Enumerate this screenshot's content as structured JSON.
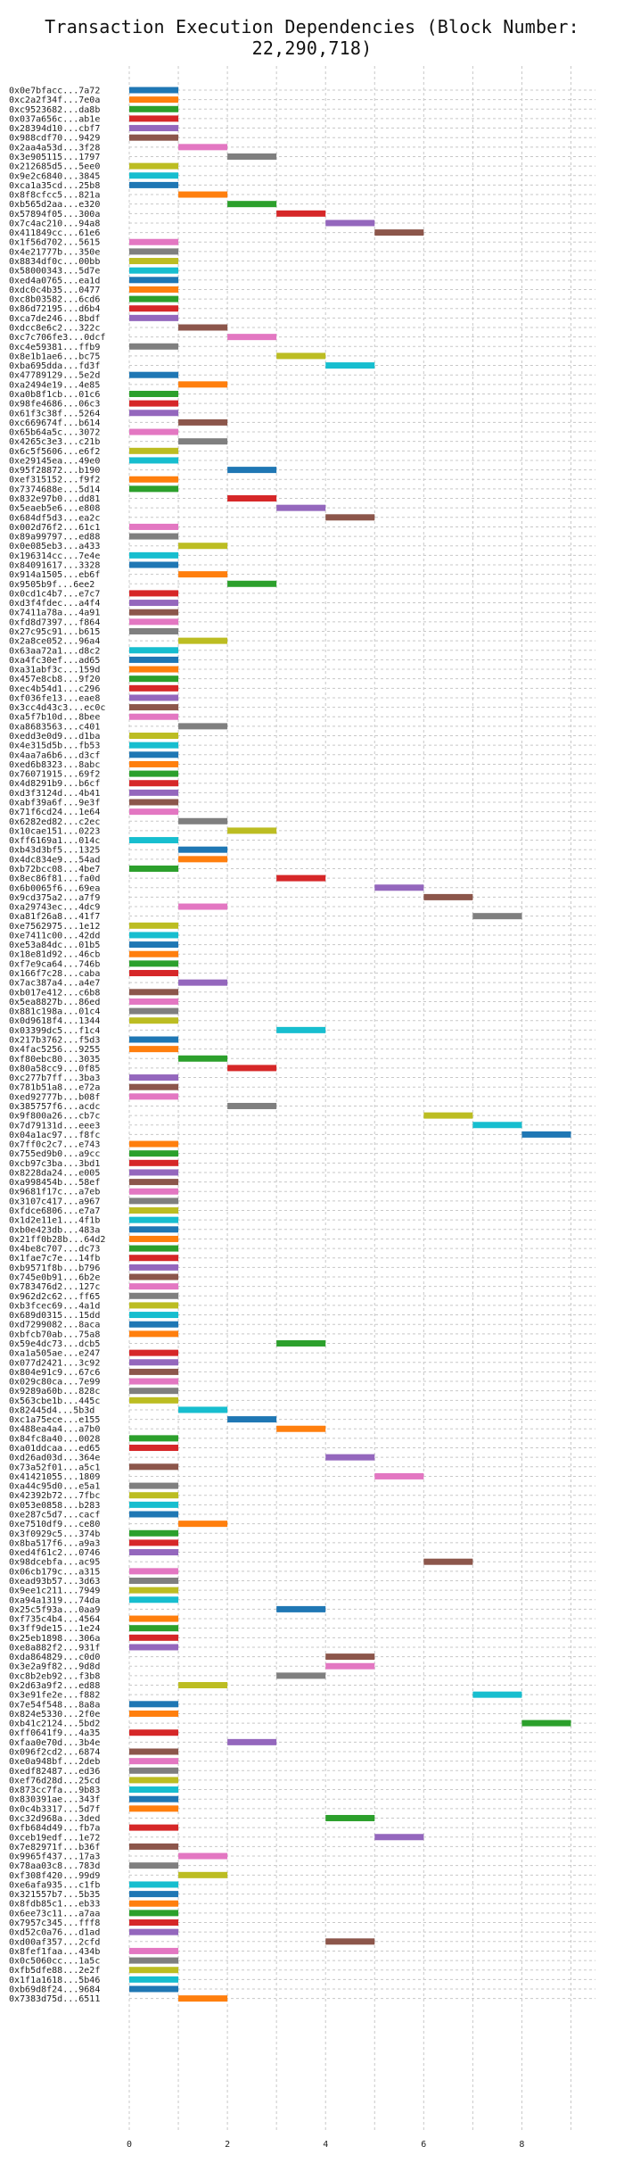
{
  "chart_data": {
    "type": "bar",
    "title": "Transaction Execution Dependencies (Block Number: 22,290,718)",
    "xlabel": "",
    "ylabel": "",
    "xlim": [
      0,
      9.5
    ],
    "x_ticks": [
      0,
      2,
      4,
      6,
      8
    ],
    "grid": true,
    "legend": "none",
    "palette": [
      "#1f77b4",
      "#ff7f0e",
      "#2ca02c",
      "#d62728",
      "#9467bd",
      "#8c564b",
      "#e377c2",
      "#7f7f7f",
      "#bcbd22",
      "#17becf"
    ],
    "bars": [
      {
        "label": "0x0e7bfacc...7a72",
        "start": 0
      },
      {
        "label": "0xc2a2f34f...7e0a",
        "start": 0
      },
      {
        "label": "0xc9523682...da8b",
        "start": 0
      },
      {
        "label": "0x037a656c...ab1e",
        "start": 0
      },
      {
        "label": "0x28394d10...cbf7",
        "start": 0
      },
      {
        "label": "0x988cdf70...9429",
        "start": 0
      },
      {
        "label": "0x2aa4a53d...3f28",
        "start": 1
      },
      {
        "label": "0x3e905115...1797",
        "start": 2
      },
      {
        "label": "0x212685d5...5ee0",
        "start": 0
      },
      {
        "label": "0x9e2c6840...3845",
        "start": 0
      },
      {
        "label": "0xca1a35cd...25b8",
        "start": 0
      },
      {
        "label": "0x8f8cfcc5...821a",
        "start": 1
      },
      {
        "label": "0xb565d2aa...e320",
        "start": 2
      },
      {
        "label": "0x57894f05...300a",
        "start": 3
      },
      {
        "label": "0x7c4ac210...94a8",
        "start": 4
      },
      {
        "label": "0x411849cc...61e6",
        "start": 5
      },
      {
        "label": "0x1f56d702...5615",
        "start": 0
      },
      {
        "label": "0x4e21777b...350e",
        "start": 0
      },
      {
        "label": "0x8834df0c...00bb",
        "start": 0
      },
      {
        "label": "0x58000343...5d7e",
        "start": 0
      },
      {
        "label": "0xed4a0765...ea1d",
        "start": 0
      },
      {
        "label": "0xdc0c4b35...0477",
        "start": 0
      },
      {
        "label": "0xc8b03582...6cd6",
        "start": 0
      },
      {
        "label": "0x86d72195...d6b4",
        "start": 0
      },
      {
        "label": "0xca7de246...8bdf",
        "start": 0
      },
      {
        "label": "0xdcc8e6c2...322c",
        "start": 1
      },
      {
        "label": "0xc7c706fe3...0dcf",
        "start": 2
      },
      {
        "label": "0xc4e59381...ffb9",
        "start": 0
      },
      {
        "label": "0x8e1b1ae6...bc75",
        "start": 3
      },
      {
        "label": "0xba695dda...fd3f",
        "start": 4
      },
      {
        "label": "0x47789129...5e2d",
        "start": 0
      },
      {
        "label": "0xa2494e19...4e85",
        "start": 1
      },
      {
        "label": "0xa0b8f1cb...01c6",
        "start": 0
      },
      {
        "label": "0x98fe4686...06c3",
        "start": 0
      },
      {
        "label": "0x61f3c38f...5264",
        "start": 0
      },
      {
        "label": "0xc669674f...b614",
        "start": 1
      },
      {
        "label": "0x65b64a5c...3072",
        "start": 0
      },
      {
        "label": "0x4265c3e3...c21b",
        "start": 1
      },
      {
        "label": "0x6c5f5606...e6f2",
        "start": 0
      },
      {
        "label": "0xe29145ea...49e0",
        "start": 0
      },
      {
        "label": "0x95f28872...b190",
        "start": 2
      },
      {
        "label": "0xef315152...f9f2",
        "start": 0
      },
      {
        "label": "0x7374688e...5d14",
        "start": 0
      },
      {
        "label": "0x832e97b0...dd81",
        "start": 2
      },
      {
        "label": "0x5eaeb5e6...e808",
        "start": 3
      },
      {
        "label": "0x684df5d3...ea2c",
        "start": 4
      },
      {
        "label": "0x002d76f2...61c1",
        "start": 0
      },
      {
        "label": "0x89a99797...ed88",
        "start": 0
      },
      {
        "label": "0x0e085eb3...a433",
        "start": 1
      },
      {
        "label": "0x196314cc...7e4e",
        "start": 0
      },
      {
        "label": "0x84091617...3328",
        "start": 0
      },
      {
        "label": "0x914a1505...eb6f",
        "start": 1
      },
      {
        "label": "0x9505b9f...6ee2",
        "start": 2
      },
      {
        "label": "0x0cd1c4b7...e7c7",
        "start": 0
      },
      {
        "label": "0xd3f4fdec...a4f4",
        "start": 0
      },
      {
        "label": "0x7411a78a...4a91",
        "start": 0
      },
      {
        "label": "0xfd8d7397...f864",
        "start": 0
      },
      {
        "label": "0x27c95c91...b615",
        "start": 0
      },
      {
        "label": "0x2a8ce052...96a4",
        "start": 1
      },
      {
        "label": "0x63aa72a1...d8c2",
        "start": 0
      },
      {
        "label": "0xa4fc30ef...ad65",
        "start": 0
      },
      {
        "label": "0xa31abf3c...159d",
        "start": 0
      },
      {
        "label": "0x457e8cb8...9f20",
        "start": 0
      },
      {
        "label": "0xec4b54d1...c296",
        "start": 0
      },
      {
        "label": "0xf036fe13...eae8",
        "start": 0
      },
      {
        "label": "0x3cc4d43c3...ec0c",
        "start": 0
      },
      {
        "label": "0xa5f7b10d...8bee",
        "start": 0
      },
      {
        "label": "0xa8683563...c401",
        "start": 1
      },
      {
        "label": "0xedd3e0d9...d1ba",
        "start": 0
      },
      {
        "label": "0x4e315d5b...fb53",
        "start": 0
      },
      {
        "label": "0x4aa7a6b6...d3cf",
        "start": 0
      },
      {
        "label": "0xed6b8323...8abc",
        "start": 0
      },
      {
        "label": "0x76071915...69f2",
        "start": 0
      },
      {
        "label": "0x4d8291b9...b6cf",
        "start": 0
      },
      {
        "label": "0xd3f3124d...4b41",
        "start": 0
      },
      {
        "label": "0xabf39a6f...9e3f",
        "start": 0
      },
      {
        "label": "0x71f6cd24...1e64",
        "start": 0
      },
      {
        "label": "0x6282ed82...c2ec",
        "start": 1
      },
      {
        "label": "0x10cae151...0223",
        "start": 2
      },
      {
        "label": "0xff6169a1...014c",
        "start": 0
      },
      {
        "label": "0xb43d3bf5...1325",
        "start": 1
      },
      {
        "label": "0x4dc834e9...54ad",
        "start": 1
      },
      {
        "label": "0xb72bcc08...4be7",
        "start": 0
      },
      {
        "label": "0x8ec86f81...fa0d",
        "start": 3
      },
      {
        "label": "0x6b0065f6...69ea",
        "start": 5
      },
      {
        "label": "0x9cd375a2...a7f9",
        "start": 6
      },
      {
        "label": "0xa29743ec...4dc9",
        "start": 1
      },
      {
        "label": "0xa81f26a8...41f7",
        "start": 7
      },
      {
        "label": "0xe7562975...1e12",
        "start": 0
      },
      {
        "label": "0xe7411c00...42dd",
        "start": 0
      },
      {
        "label": "0xe53a84dc...01b5",
        "start": 0
      },
      {
        "label": "0x18e81d92...46cb",
        "start": 0
      },
      {
        "label": "0xf7e9ca64...746b",
        "start": 0
      },
      {
        "label": "0x166f7c28...caba",
        "start": 0
      },
      {
        "label": "0x7ac387a4...a4e7",
        "start": 1
      },
      {
        "label": "0xb017e412...c6b8",
        "start": 0
      },
      {
        "label": "0x5ea8827b...86ed",
        "start": 0
      },
      {
        "label": "0x881c198a...01c4",
        "start": 0
      },
      {
        "label": "0x0d9618f4...1344",
        "start": 0
      },
      {
        "label": "0x03399dc5...f1c4",
        "start": 3
      },
      {
        "label": "0x217b3762...f5d3",
        "start": 0
      },
      {
        "label": "0x4fac5256...9255",
        "start": 0
      },
      {
        "label": "0xf80ebc80...3035",
        "start": 1
      },
      {
        "label": "0x80a58cc9...0f85",
        "start": 2
      },
      {
        "label": "0xc277b7ff...3ba3",
        "start": 0
      },
      {
        "label": "0x781b51a8...e72a",
        "start": 0
      },
      {
        "label": "0xed92777b...b08f",
        "start": 0
      },
      {
        "label": "0x385757f6...acdc",
        "start": 2
      },
      {
        "label": "0x9f800a26...cb7c",
        "start": 6
      },
      {
        "label": "0x7d79131d...eee3",
        "start": 7
      },
      {
        "label": "0x04a1ac97...f8fc",
        "start": 8
      },
      {
        "label": "0x7ff0c2c7...e743",
        "start": 0
      },
      {
        "label": "0x755ed9b0...a9cc",
        "start": 0
      },
      {
        "label": "0xcb97c3ba...3bd1",
        "start": 0
      },
      {
        "label": "0x8228da24...e005",
        "start": 0
      },
      {
        "label": "0xa998454b...58ef",
        "start": 0
      },
      {
        "label": "0x9681f17c...a7eb",
        "start": 0
      },
      {
        "label": "0x3107c417...a967",
        "start": 0
      },
      {
        "label": "0xfdce6806...e7a7",
        "start": 0
      },
      {
        "label": "0x1d2e11e1...4f1b",
        "start": 0
      },
      {
        "label": "0xb0e423db...483a",
        "start": 0
      },
      {
        "label": "0x21ff0b28b...64d2",
        "start": 0
      },
      {
        "label": "0x4be8c707...dc73",
        "start": 0
      },
      {
        "label": "0x1fae7c7e...14fb",
        "start": 0
      },
      {
        "label": "0xb9571f8b...b796",
        "start": 0
      },
      {
        "label": "0x745e0b91...6b2e",
        "start": 0
      },
      {
        "label": "0x783476d2...127c",
        "start": 0
      },
      {
        "label": "0x962d2c62...ff65",
        "start": 0
      },
      {
        "label": "0xb3fcec69...4a1d",
        "start": 0
      },
      {
        "label": "0x689d0315...15dd",
        "start": 0
      },
      {
        "label": "0xd7299082...8aca",
        "start": 0
      },
      {
        "label": "0xbfcb70ab...75a8",
        "start": 0
      },
      {
        "label": "0x59e4dc73...dcb5",
        "start": 3
      },
      {
        "label": "0xa1a505ae...e247",
        "start": 0
      },
      {
        "label": "0x077d2421...3c92",
        "start": 0
      },
      {
        "label": "0x804e91c9...67c6",
        "start": 0
      },
      {
        "label": "0x029c80ca...7e99",
        "start": 0
      },
      {
        "label": "0x9289a60b...828c",
        "start": 0
      },
      {
        "label": "0x563cbe1b...445c",
        "start": 0
      },
      {
        "label": "0x82445d4...5b3d",
        "start": 1
      },
      {
        "label": "0xc1a75ece...e155",
        "start": 2
      },
      {
        "label": "0x488ea4a4...a7b0",
        "start": 3
      },
      {
        "label": "0x84fc8a40...0028",
        "start": 0
      },
      {
        "label": "0xa01ddcaa...ed65",
        "start": 0
      },
      {
        "label": "0xd26ad03d...364e",
        "start": 4
      },
      {
        "label": "0x73a52f01...a5c1",
        "start": 0
      },
      {
        "label": "0x41421055...1809",
        "start": 5
      },
      {
        "label": "0xa44c95d0...e5a1",
        "start": 0
      },
      {
        "label": "0x42392b72...7fbc",
        "start": 0
      },
      {
        "label": "0x053e0858...b283",
        "start": 0
      },
      {
        "label": "0xe287c5d7...cacf",
        "start": 0
      },
      {
        "label": "0xe7510df9...ce80",
        "start": 1
      },
      {
        "label": "0x3f0929c5...374b",
        "start": 0
      },
      {
        "label": "0x8ba517f6...a9a3",
        "start": 0
      },
      {
        "label": "0xed4f61c2...0746",
        "start": 0
      },
      {
        "label": "0x98dcebfa...ac95",
        "start": 6
      },
      {
        "label": "0x06cb179c...a315",
        "start": 0
      },
      {
        "label": "0xead93b57...3d63",
        "start": 0
      },
      {
        "label": "0x9ee1c211...7949",
        "start": 0
      },
      {
        "label": "0xa94a1319...74da",
        "start": 0
      },
      {
        "label": "0x25c5f93a...0aa9",
        "start": 3
      },
      {
        "label": "0xf735c4b4...4564",
        "start": 0
      },
      {
        "label": "0x3ff9de15...1e24",
        "start": 0
      },
      {
        "label": "0x25eb1898...306a",
        "start": 0
      },
      {
        "label": "0xe8a882f2...931f",
        "start": 0
      },
      {
        "label": "0xda864829...c0d0",
        "start": 4
      },
      {
        "label": "0x3e2a9f82...9d8d",
        "start": 4
      },
      {
        "label": "0xc8b2eb92...f3b8",
        "start": 3
      },
      {
        "label": "0x2d63a9f2...ed88",
        "start": 1
      },
      {
        "label": "0x3e91fe2e...f882",
        "start": 7
      },
      {
        "label": "0x7e54f548...8a8a",
        "start": 0
      },
      {
        "label": "0x824e5330...2f0e",
        "start": 0
      },
      {
        "label": "0xb41c2124...5bd2",
        "start": 8
      },
      {
        "label": "0xff0641f9...4a35",
        "start": 0
      },
      {
        "label": "0xfaa0e70d...3b4e",
        "start": 2
      },
      {
        "label": "0x096f2cd2...6874",
        "start": 0
      },
      {
        "label": "0xe0a948bf...2deb",
        "start": 0
      },
      {
        "label": "0xedf82487...ed36",
        "start": 0
      },
      {
        "label": "0xef76d28d...25cd",
        "start": 0
      },
      {
        "label": "0x873cc7fa...9b83",
        "start": 0
      },
      {
        "label": "0x830391ae...343f",
        "start": 0
      },
      {
        "label": "0x0c4b3317...5d7f",
        "start": 0
      },
      {
        "label": "0xc32d968a...3ded",
        "start": 4
      },
      {
        "label": "0xfb684d49...fb7a",
        "start": 0
      },
      {
        "label": "0xceb19edf...1e72",
        "start": 5
      },
      {
        "label": "0x7e82971f...b36f",
        "start": 0
      },
      {
        "label": "0x9965f437...17a3",
        "start": 1
      },
      {
        "label": "0x78aa03c8...783d",
        "start": 0
      },
      {
        "label": "0xf308f420...99d9",
        "start": 1
      },
      {
        "label": "0xe6afa935...c1fb",
        "start": 0
      },
      {
        "label": "0x321557b7...5b35",
        "start": 0
      },
      {
        "label": "0x8fdb85c1...eb33",
        "start": 0
      },
      {
        "label": "0x6ee73c11...a7aa",
        "start": 0
      },
      {
        "label": "0x7957c345...fff8",
        "start": 0
      },
      {
        "label": "0xd52c0a76...d1ad",
        "start": 0
      },
      {
        "label": "0xd00af357...2cfd",
        "start": 4
      },
      {
        "label": "0x8fef1faa...434b",
        "start": 0
      },
      {
        "label": "0x0c5060cc...1a5c",
        "start": 0
      },
      {
        "label": "0xfb5dfe88...2e2f",
        "start": 0
      },
      {
        "label": "0x1f1a1618...5b46",
        "start": 0
      },
      {
        "label": "0xb69d8f24...9684",
        "start": 0
      },
      {
        "label": "0x7383d75d...6511",
        "start": 1
      }
    ]
  }
}
